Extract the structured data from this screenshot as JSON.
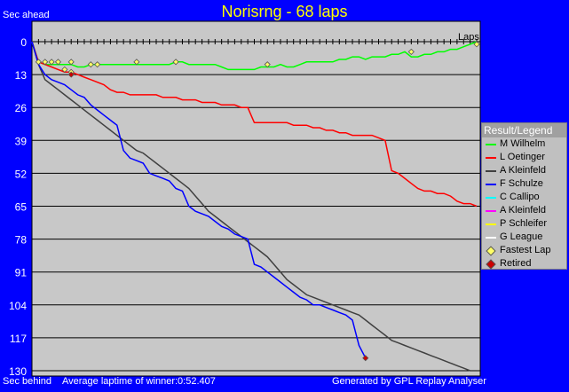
{
  "header": {
    "title": "Norisrng - 68 laps",
    "sec_ahead": "Sec ahead",
    "sec_behind": "Sec behind",
    "avg_laptime": "Average laptime of winner:0:52.407",
    "generated": "Generated by GPL Replay Analyser"
  },
  "legend": {
    "title": "Result/Legend",
    "items": [
      {
        "label": "M Wilhelm",
        "color": "#00ff00",
        "kind": "line"
      },
      {
        "label": "L Oetinger",
        "color": "#ff0000",
        "kind": "line"
      },
      {
        "label": "A Kleinfeld",
        "color": "#404040",
        "kind": "line"
      },
      {
        "label": "F Schulze",
        "color": "#0000ff",
        "kind": "line"
      },
      {
        "label": "C Callipo",
        "color": "#00ffff",
        "kind": "line"
      },
      {
        "label": "A Kleinfeld",
        "color": "#ff00ff",
        "kind": "line"
      },
      {
        "label": "P Schleifer",
        "color": "#ffff00",
        "kind": "line"
      },
      {
        "label": "G League",
        "color": "#ffffff",
        "kind": "line"
      },
      {
        "label": "Fastest Lap",
        "color": "#ffff66",
        "kind": "diamond"
      },
      {
        "label": "Retired",
        "color": "#cc0000",
        "kind": "diamond"
      }
    ]
  },
  "chart_data": {
    "type": "line",
    "xlabel": "Laps",
    "ylabel": "Sec ahead",
    "xlim": [
      0,
      68
    ],
    "ylim": [
      0,
      130
    ],
    "yticks": [
      0,
      13,
      26,
      39,
      52,
      65,
      78,
      91,
      104,
      117,
      130
    ],
    "grid": true,
    "legend_position": "right",
    "series": [
      {
        "name": "M Wilhelm",
        "color": "#00ff00",
        "x": [
          0,
          1,
          2,
          3,
          4,
          5,
          6,
          7,
          8,
          9,
          10,
          11,
          12,
          13,
          14,
          15,
          16,
          17,
          18,
          19,
          20,
          21,
          22,
          23,
          24,
          25,
          26,
          27,
          28,
          29,
          30,
          31,
          32,
          33,
          34,
          35,
          36,
          37,
          38,
          39,
          40,
          41,
          42,
          43,
          44,
          45,
          46,
          47,
          48,
          49,
          50,
          51,
          52,
          53,
          54,
          55,
          56,
          57,
          58,
          59,
          60,
          61,
          62,
          63,
          64,
          65,
          66,
          67,
          68
        ],
        "y": [
          0,
          8,
          9,
          9,
          9,
          9,
          9,
          10,
          10,
          9,
          9,
          9,
          9,
          9,
          9,
          9,
          9,
          9,
          9,
          9,
          9,
          9,
          8,
          8,
          9,
          9,
          9,
          9,
          9,
          10,
          11,
          11,
          11,
          11,
          11,
          10,
          10,
          10,
          9,
          10,
          10,
          9,
          8,
          8,
          8,
          8,
          8,
          7,
          7,
          6,
          6,
          7,
          6,
          6,
          6,
          5,
          5,
          4,
          6,
          6,
          5,
          5,
          4,
          4,
          3,
          3,
          2,
          1,
          0
        ]
      },
      {
        "name": "L Oetinger",
        "color": "#ff0000",
        "x": [
          0,
          1,
          2,
          3,
          4,
          5,
          6,
          7,
          8,
          9,
          10,
          11,
          12,
          13,
          14,
          15,
          16,
          17,
          18,
          19,
          20,
          21,
          22,
          23,
          24,
          25,
          26,
          27,
          28,
          29,
          30,
          31,
          32,
          33,
          34,
          35,
          36,
          37,
          38,
          39,
          40,
          41,
          42,
          43,
          44,
          45,
          46,
          47,
          48,
          49,
          50,
          51,
          52,
          53,
          54,
          55,
          56,
          57,
          58,
          59,
          60,
          61,
          62,
          63,
          64,
          65,
          66,
          67,
          68
        ],
        "y": [
          0,
          8,
          9,
          10,
          11,
          12,
          12,
          13,
          14,
          15,
          16,
          17,
          19,
          20,
          20,
          21,
          21,
          21,
          21,
          21,
          22,
          22,
          22,
          23,
          23,
          23,
          24,
          24,
          24,
          25,
          25,
          25,
          26,
          26,
          32,
          32,
          32,
          32,
          32,
          32,
          33,
          33,
          33,
          34,
          34,
          35,
          35,
          36,
          36,
          37,
          37,
          37,
          37,
          38,
          39,
          51,
          52,
          54,
          56,
          58,
          59,
          59,
          60,
          60,
          61,
          63,
          64,
          64,
          65
        ]
      },
      {
        "name": "A Kleinfeld",
        "color": "#404040",
        "x": [
          0,
          1,
          2,
          3,
          4,
          5,
          6,
          7,
          8,
          9,
          10,
          11,
          12,
          13,
          14,
          15,
          16,
          17,
          18,
          19,
          20,
          21,
          22,
          23,
          24,
          25,
          26,
          27,
          28,
          29,
          30,
          31,
          32,
          33,
          34,
          35,
          36,
          37,
          38,
          39,
          40,
          41,
          42,
          43,
          44,
          45,
          46,
          47,
          48,
          49,
          50,
          51,
          52,
          53,
          54,
          55,
          56,
          57,
          58,
          59,
          60,
          61,
          62,
          63,
          64,
          65,
          66,
          67,
          68
        ],
        "y": [
          0,
          9,
          15,
          17,
          19,
          21,
          23,
          25,
          27,
          29,
          31,
          33,
          35,
          37,
          39,
          41,
          43,
          44,
          46,
          48,
          50,
          52,
          54,
          56,
          58,
          61,
          64,
          67,
          69,
          71,
          73,
          75,
          77,
          79,
          81,
          83,
          85,
          88,
          91,
          94,
          96,
          98,
          100,
          101,
          102,
          103,
          104,
          105,
          106,
          107,
          108,
          110,
          112,
          114,
          116,
          118,
          119,
          120,
          121,
          122,
          123,
          124,
          125,
          126,
          127,
          128,
          129,
          130,
          130
        ]
      },
      {
        "name": "F Schulze",
        "color": "#0000ff",
        "x": [
          0,
          1,
          2,
          3,
          4,
          5,
          6,
          7,
          8,
          9,
          10,
          11,
          12,
          13,
          14,
          15,
          16,
          17,
          18,
          19,
          20,
          21,
          22,
          23,
          24,
          25,
          26,
          27,
          28,
          29,
          30,
          31,
          32,
          33,
          34,
          35,
          36,
          37,
          38,
          39,
          40,
          41,
          42,
          43,
          44,
          45,
          46,
          47,
          48,
          49,
          50,
          51
        ],
        "y": [
          0,
          9,
          13,
          15,
          16,
          17,
          19,
          21,
          22,
          25,
          27,
          29,
          31,
          33,
          43,
          46,
          47,
          48,
          52,
          53,
          54,
          55,
          58,
          59,
          65,
          67,
          68,
          69,
          71,
          73,
          74,
          76,
          77,
          78,
          88,
          89,
          91,
          93,
          95,
          97,
          99,
          101,
          102,
          104,
          104,
          105,
          106,
          107,
          108,
          110,
          120,
          125
        ]
      }
    ],
    "fastest_laps": [
      {
        "x": 1,
        "y": 8
      },
      {
        "x": 2,
        "y": 8
      },
      {
        "x": 3,
        "y": 8
      },
      {
        "x": 4,
        "y": 8
      },
      {
        "x": 5,
        "y": 11
      },
      {
        "x": 6,
        "y": 8
      },
      {
        "x": 6,
        "y": 12
      },
      {
        "x": 9,
        "y": 9
      },
      {
        "x": 10,
        "y": 9
      },
      {
        "x": 16,
        "y": 8
      },
      {
        "x": 22,
        "y": 8
      },
      {
        "x": 36,
        "y": 9
      },
      {
        "x": 58,
        "y": 4
      },
      {
        "x": 68,
        "y": 1
      }
    ],
    "retired": [
      {
        "x": 51,
        "y": 125
      },
      {
        "x": 6,
        "y": 13
      }
    ]
  }
}
